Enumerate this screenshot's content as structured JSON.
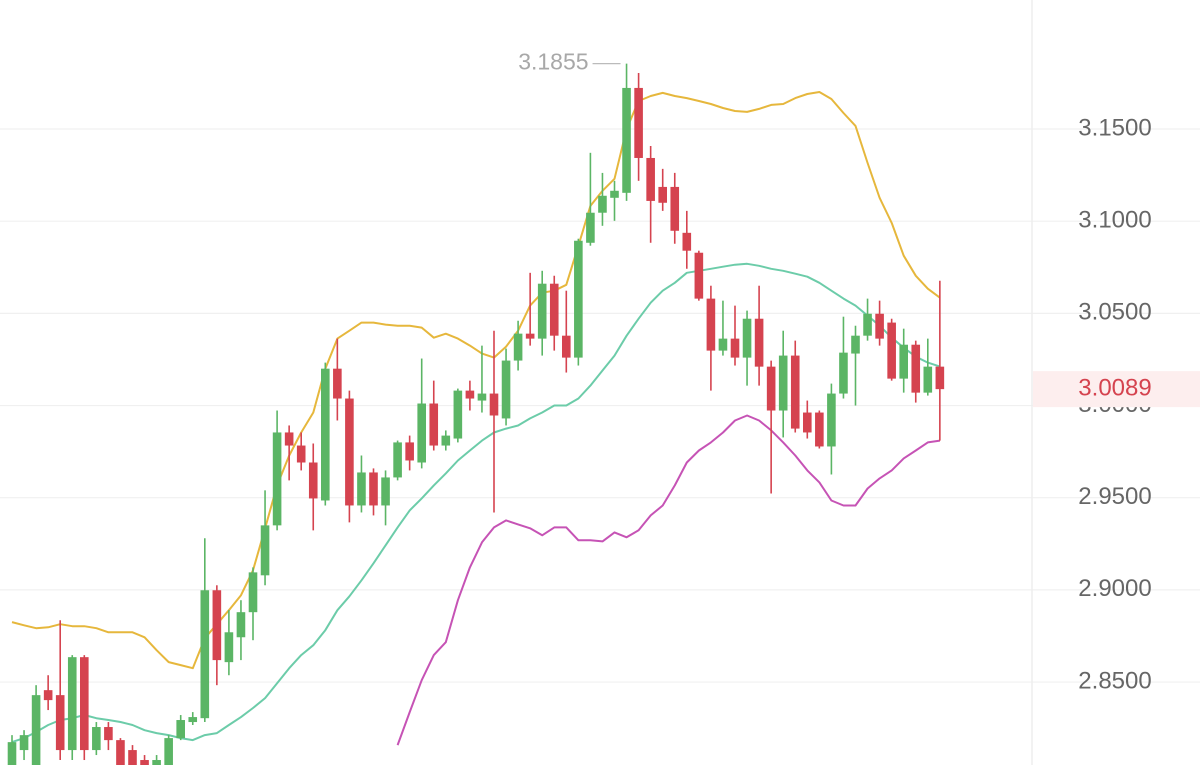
{
  "chart_data": {
    "type": "candlestick",
    "open": [
      2.805,
      2.8131,
      2.805,
      2.8456,
      2.8429,
      2.8131,
      2.8635,
      2.8131,
      2.8256,
      2.8185,
      2.8131,
      2.8077,
      2.8023,
      2.805,
      2.8196,
      2.8283,
      2.8304,
      2.8998,
      2.8608,
      2.8743,
      2.8879,
      2.9079,
      2.935,
      2.9854,
      2.9783,
      2.9691,
      2.9485,
      3.02,
      3.0038,
      2.9458,
      2.9637,
      2.9458,
      2.961,
      2.98,
      2.9691,
      3.0011,
      2.9783,
      2.9821,
      3.0081,
      3.0027,
      3.0065,
      2.993,
      3.0244,
      3.039,
      3.0363,
      3.0661,
      3.0379,
      3.026,
      3.0883,
      3.1046,
      3.1127,
      3.1154,
      3.1723,
      3.1343,
      3.1186,
      3.1186,
      3.0937,
      3.0829,
      3.058,
      3.0298,
      3.0363,
      3.026,
      3.0471,
      3.0211,
      2.9973,
      3.0271,
      2.9962,
      2.9962,
      2.9778,
      3.0065,
      3.0282,
      3.0379,
      3.0498,
      3.045,
      3.0146,
      3.033,
      3.007,
      3.0211
    ],
    "high": [
      2.8212,
      2.8239,
      2.8483,
      2.8537,
      2.8835,
      2.8646,
      2.8646,
      2.8283,
      2.8283,
      2.8196,
      2.8158,
      2.8104,
      2.8104,
      2.8212,
      2.8321,
      2.8337,
      2.928,
      2.9025,
      2.889,
      2.8944,
      2.9122,
      2.954,
      2.9973,
      2.9892,
      2.9854,
      2.9794,
      3.0233,
      3.0363,
      3.0081,
      2.9729,
      2.9659,
      2.9648,
      2.981,
      2.9837,
      3.0255,
      3.0135,
      2.9865,
      3.0092,
      3.0135,
      3.0325,
      3.0406,
      3.0309,
      3.046,
      3.072,
      3.0731,
      3.0704,
      3.0623,
      3.0905,
      3.1371,
      3.1262,
      3.1219,
      3.1855,
      3.1804,
      3.1408,
      3.1284,
      3.1262,
      3.1056,
      3.084,
      3.065,
      3.0569,
      3.0542,
      3.0515,
      3.065,
      3.0244,
      3.0406,
      3.0352,
      3.0027,
      2.9973,
      3.0119,
      3.0482,
      3.0433,
      3.058,
      3.0569,
      3.0471,
      3.0417,
      3.0352,
      3.0363,
      3.0677
    ],
    "low": [
      2.8023,
      2.8077,
      2.8023,
      2.8348,
      2.8077,
      2.8077,
      2.8077,
      2.8104,
      2.8131,
      2.8023,
      2.7996,
      2.7996,
      2.7996,
      2.8023,
      2.8185,
      2.8267,
      2.8283,
      2.8483,
      2.8537,
      2.8619,
      2.8727,
      2.9025,
      2.9323,
      2.9594,
      2.9648,
      2.9323,
      2.9458,
      2.9919,
      2.9366,
      2.942,
      2.9404,
      2.935,
      2.9594,
      2.9648,
      2.9659,
      2.9756,
      2.9756,
      2.98,
      2.9973,
      2.9962,
      2.942,
      2.9892,
      3.019,
      3.0325,
      3.0271,
      3.0298,
      3.0179,
      3.0217,
      3.0867,
      3.0975,
      3.1002,
      3.111,
      3.1219,
      3.0883,
      3.1056,
      3.0878,
      3.0742,
      3.0569,
      3.0081,
      3.0271,
      3.0217,
      3.0108,
      3.0108,
      2.9523,
      2.9827,
      2.9854,
      2.9821,
      2.9767,
      2.9626,
      3.0038,
      3.0,
      3.0352,
      3.0325,
      3.0135,
      3.007,
      3.0016,
      3.0054,
      2.981
    ],
    "close": [
      2.8174,
      2.8212,
      2.8429,
      2.8402,
      2.8131,
      2.8635,
      2.8131,
      2.8256,
      2.8185,
      2.805,
      2.8034,
      2.8023,
      2.8077,
      2.8196,
      2.8294,
      2.831,
      2.8998,
      2.8619,
      2.877,
      2.8879,
      2.9095,
      2.935,
      2.9854,
      2.9783,
      2.9691,
      2.9496,
      3.02,
      3.0038,
      2.9458,
      2.9637,
      2.9458,
      2.961,
      2.98,
      2.9702,
      3.0011,
      2.9783,
      2.9837,
      3.0081,
      3.0038,
      3.0065,
      2.9946,
      3.0244,
      3.039,
      3.0363,
      3.0661,
      3.0379,
      3.026,
      3.0894,
      3.1046,
      3.1138,
      3.1165,
      3.1723,
      3.1343,
      3.111,
      3.11,
      3.0948,
      3.084,
      3.058,
      3.0298,
      3.0363,
      3.026,
      3.0471,
      3.0211,
      2.9973,
      3.0271,
      2.9875,
      2.9854,
      2.9778,
      3.0065,
      3.0287,
      3.0379,
      3.0498,
      3.0363,
      3.0146,
      3.033,
      3.007,
      3.0211,
      3.0089
    ],
    "up_color": "#5bb565",
    "down_color": "#d5434f",
    "overlays": [
      {
        "color": "#e6b73c",
        "values": [
          2.8825,
          2.8808,
          2.8792,
          2.8797,
          2.8814,
          2.8803,
          2.8803,
          2.8792,
          2.877,
          2.877,
          2.877,
          2.8743,
          2.8673,
          2.8608,
          2.8592,
          2.8575,
          2.8738,
          2.8814,
          2.889,
          2.8971,
          2.9106,
          2.9334,
          2.9567,
          2.9729,
          2.9854,
          2.9962,
          3.02,
          3.0363,
          3.0406,
          3.045,
          3.045,
          3.0439,
          3.0433,
          3.0433,
          3.0423,
          3.0368,
          3.039,
          3.0363,
          3.0325,
          3.0282,
          3.026,
          3.032,
          3.0406,
          3.0542,
          3.0612,
          3.0623,
          3.0655,
          3.0867,
          3.1083,
          3.1165,
          3.123,
          3.15,
          3.1652,
          3.1679,
          3.1696,
          3.1679,
          3.1668,
          3.1652,
          3.1636,
          3.1614,
          3.1598,
          3.1593,
          3.1609,
          3.1631,
          3.1636,
          3.1668,
          3.169,
          3.1701,
          3.1663,
          3.1587,
          3.1517,
          3.1316,
          3.1127,
          3.0991,
          3.0813,
          3.0704,
          3.0634,
          3.0585
        ]
      },
      {
        "color": "#6ccca9",
        "values": [
          2.8174,
          2.8196,
          2.8229,
          2.8267,
          2.8294,
          2.8304,
          2.8321,
          2.8304,
          2.8294,
          2.8283,
          2.8267,
          2.8239,
          2.8223,
          2.8212,
          2.8196,
          2.8185,
          2.8212,
          2.8223,
          2.8267,
          2.831,
          2.8359,
          2.8413,
          2.8494,
          2.8575,
          2.8646,
          2.87,
          2.8781,
          2.889,
          2.8965,
          2.9052,
          2.9144,
          2.9242,
          2.9339,
          2.9431,
          2.9496,
          2.9567,
          2.9632,
          2.9702,
          2.9756,
          2.981,
          2.9854,
          2.9875,
          2.9892,
          2.993,
          2.9962,
          3.0,
          3.0,
          3.0038,
          3.0108,
          3.019,
          3.0271,
          3.0379,
          3.0471,
          3.0558,
          3.0623,
          3.0666,
          3.072,
          3.0731,
          3.0742,
          3.0753,
          3.0764,
          3.0769,
          3.0758,
          3.0742,
          3.0731,
          3.0715,
          3.0699,
          3.0666,
          3.0623,
          3.058,
          3.0542,
          3.0488,
          3.0433,
          3.0368,
          3.0314,
          3.0265,
          3.0233,
          3.0211
        ]
      },
      {
        "color": "#c653b5",
        "values": [
          null,
          null,
          null,
          null,
          null,
          null,
          null,
          null,
          null,
          null,
          null,
          null,
          null,
          null,
          null,
          null,
          null,
          null,
          null,
          null,
          null,
          null,
          null,
          null,
          null,
          null,
          null,
          null,
          null,
          null,
          null,
          null,
          2.8158,
          2.8337,
          2.851,
          2.8646,
          2.8716,
          2.8944,
          2.9122,
          2.9258,
          2.9339,
          2.9377,
          2.9355,
          2.9334,
          2.9296,
          2.9339,
          2.9339,
          2.9269,
          2.9269,
          2.9263,
          2.9312,
          2.9285,
          2.9323,
          2.9404,
          2.9458,
          2.9567,
          2.9691,
          2.9756,
          2.98,
          2.9854,
          2.9919,
          2.9946,
          2.9919,
          2.9865,
          2.98,
          2.9729,
          2.9648,
          2.9583,
          2.9485,
          2.9458,
          2.9458,
          2.955,
          2.9605,
          2.9648,
          2.9713,
          2.9756,
          2.98,
          2.981
        ]
      }
    ],
    "ylim": [
      2.805,
      3.22
    ],
    "yticks": [
      {
        "value": 2.85,
        "label": "2.8500"
      },
      {
        "value": 2.9,
        "label": "2.9000"
      },
      {
        "value": 2.95,
        "label": "2.9500"
      },
      {
        "value": 3.0,
        "label": "3.0000"
      },
      {
        "value": 3.05,
        "label": "3.0500"
      },
      {
        "value": 3.1,
        "label": "3.1000"
      },
      {
        "value": 3.15,
        "label": "3.1500"
      }
    ],
    "grid": true
  }
}
